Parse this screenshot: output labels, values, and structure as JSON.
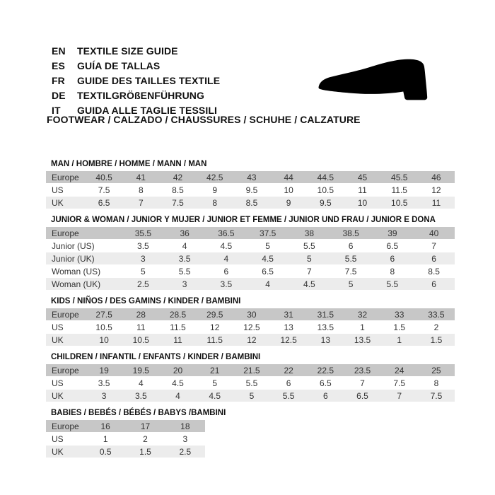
{
  "header": {
    "languages": [
      {
        "code": "EN",
        "label": "TEXTILE SIZE GUIDE"
      },
      {
        "code": "ES",
        "label": "GUÍA DE TALLAS"
      },
      {
        "code": "FR",
        "label": "GUIDE DES TAILLES TEXTILE"
      },
      {
        "code": "DE",
        "label": "TEXTILGRÖßENFÜHRUNG"
      },
      {
        "code": "IT",
        "label": "GUIDA ALLE TAGLIE TESSILI"
      }
    ],
    "category_title": "FOOTWEAR / CALZADO / CHAUSSURES / SCHUHE / CALZATURE",
    "icon": "dress-shoe-silhouette"
  },
  "colors": {
    "header_row_bg": "#c7c7c7",
    "alt_row_bg": "#ececec",
    "shoe_icon": "#000000",
    "text": "#1d1d1d"
  },
  "tables": [
    {
      "title": "MAN / HOMBRE / HOMME / MANN / MAN",
      "rows": [
        {
          "label": "Europe",
          "values": [
            "40.5",
            "41",
            "42",
            "42.5",
            "43",
            "44",
            "44.5",
            "45",
            "45.5",
            "46"
          ]
        },
        {
          "label": "US",
          "values": [
            "7.5",
            "8",
            "8.5",
            "9",
            "9.5",
            "10",
            "10.5",
            "11",
            "11.5",
            "12"
          ]
        },
        {
          "label": "UK",
          "values": [
            "6.5",
            "7",
            "7.5",
            "8",
            "8.5",
            "9",
            "9.5",
            "10",
            "10.5",
            "11"
          ]
        }
      ]
    },
    {
      "title": "JUNIOR & WOMAN / JUNIOR Y MUJER / JUNIOR ET FEMME / JUNIOR UND FRAU / JUNIOR E DONA",
      "rows": [
        {
          "label": "Europe",
          "values": [
            "35.5",
            "36",
            "36.5",
            "37.5",
            "38",
            "38.5",
            "39",
            "40"
          ]
        },
        {
          "label": "Junior (US)",
          "values": [
            "3.5",
            "4",
            "4.5",
            "5",
            "5.5",
            "6",
            "6.5",
            "7"
          ]
        },
        {
          "label": "Junior (UK)",
          "values": [
            "3",
            "3.5",
            "4",
            "4.5",
            "5",
            "5.5",
            "6",
            "6"
          ]
        },
        {
          "label": "Woman (US)",
          "values": [
            "5",
            "5.5",
            "6",
            "6.5",
            "7",
            "7.5",
            "8",
            "8.5"
          ]
        },
        {
          "label": "Woman (UK)",
          "values": [
            "2.5",
            "3",
            "3.5",
            "4",
            "4.5",
            "5",
            "5.5",
            "6"
          ]
        }
      ]
    },
    {
      "title": "KIDS / NIÑOS / DES GAMINS / KINDER / BAMBINI",
      "rows": [
        {
          "label": "Europe",
          "values": [
            "27.5",
            "28",
            "28.5",
            "29.5",
            "30",
            "31",
            "31.5",
            "32",
            "33",
            "33.5"
          ]
        },
        {
          "label": "US",
          "values": [
            "10.5",
            "11",
            "11.5",
            "12",
            "12.5",
            "13",
            "13.5",
            "1",
            "1.5",
            "2"
          ]
        },
        {
          "label": "UK",
          "values": [
            "10",
            "10.5",
            "11",
            "11.5",
            "12",
            "12.5",
            "13",
            "13.5",
            "1",
            "1.5"
          ]
        }
      ]
    },
    {
      "title": "CHILDREN / INFANTIL / ENFANTS / KINDER / BAMBINI",
      "rows": [
        {
          "label": "Europe",
          "values": [
            "19",
            "19.5",
            "20",
            "21",
            "21.5",
            "22",
            "22.5",
            "23.5",
            "24",
            "25"
          ]
        },
        {
          "label": "US",
          "values": [
            "3.5",
            "4",
            "4.5",
            "5",
            "5.5",
            "6",
            "6.5",
            "7",
            "7.5",
            "8"
          ]
        },
        {
          "label": "UK",
          "values": [
            "3",
            "3.5",
            "4",
            "4.5",
            "5",
            "5.5",
            "6",
            "6.5",
            "7",
            "7.5"
          ]
        }
      ]
    },
    {
      "title": "BABIES / BEBÉS / BÉBÉS / BABYS /BAMBINI",
      "rows": [
        {
          "label": "Europe",
          "values": [
            "16",
            "17",
            "18"
          ]
        },
        {
          "label": "US",
          "values": [
            "1",
            "2",
            "3"
          ]
        },
        {
          "label": "UK",
          "values": [
            "0.5",
            "1.5",
            "2.5"
          ]
        }
      ]
    }
  ]
}
